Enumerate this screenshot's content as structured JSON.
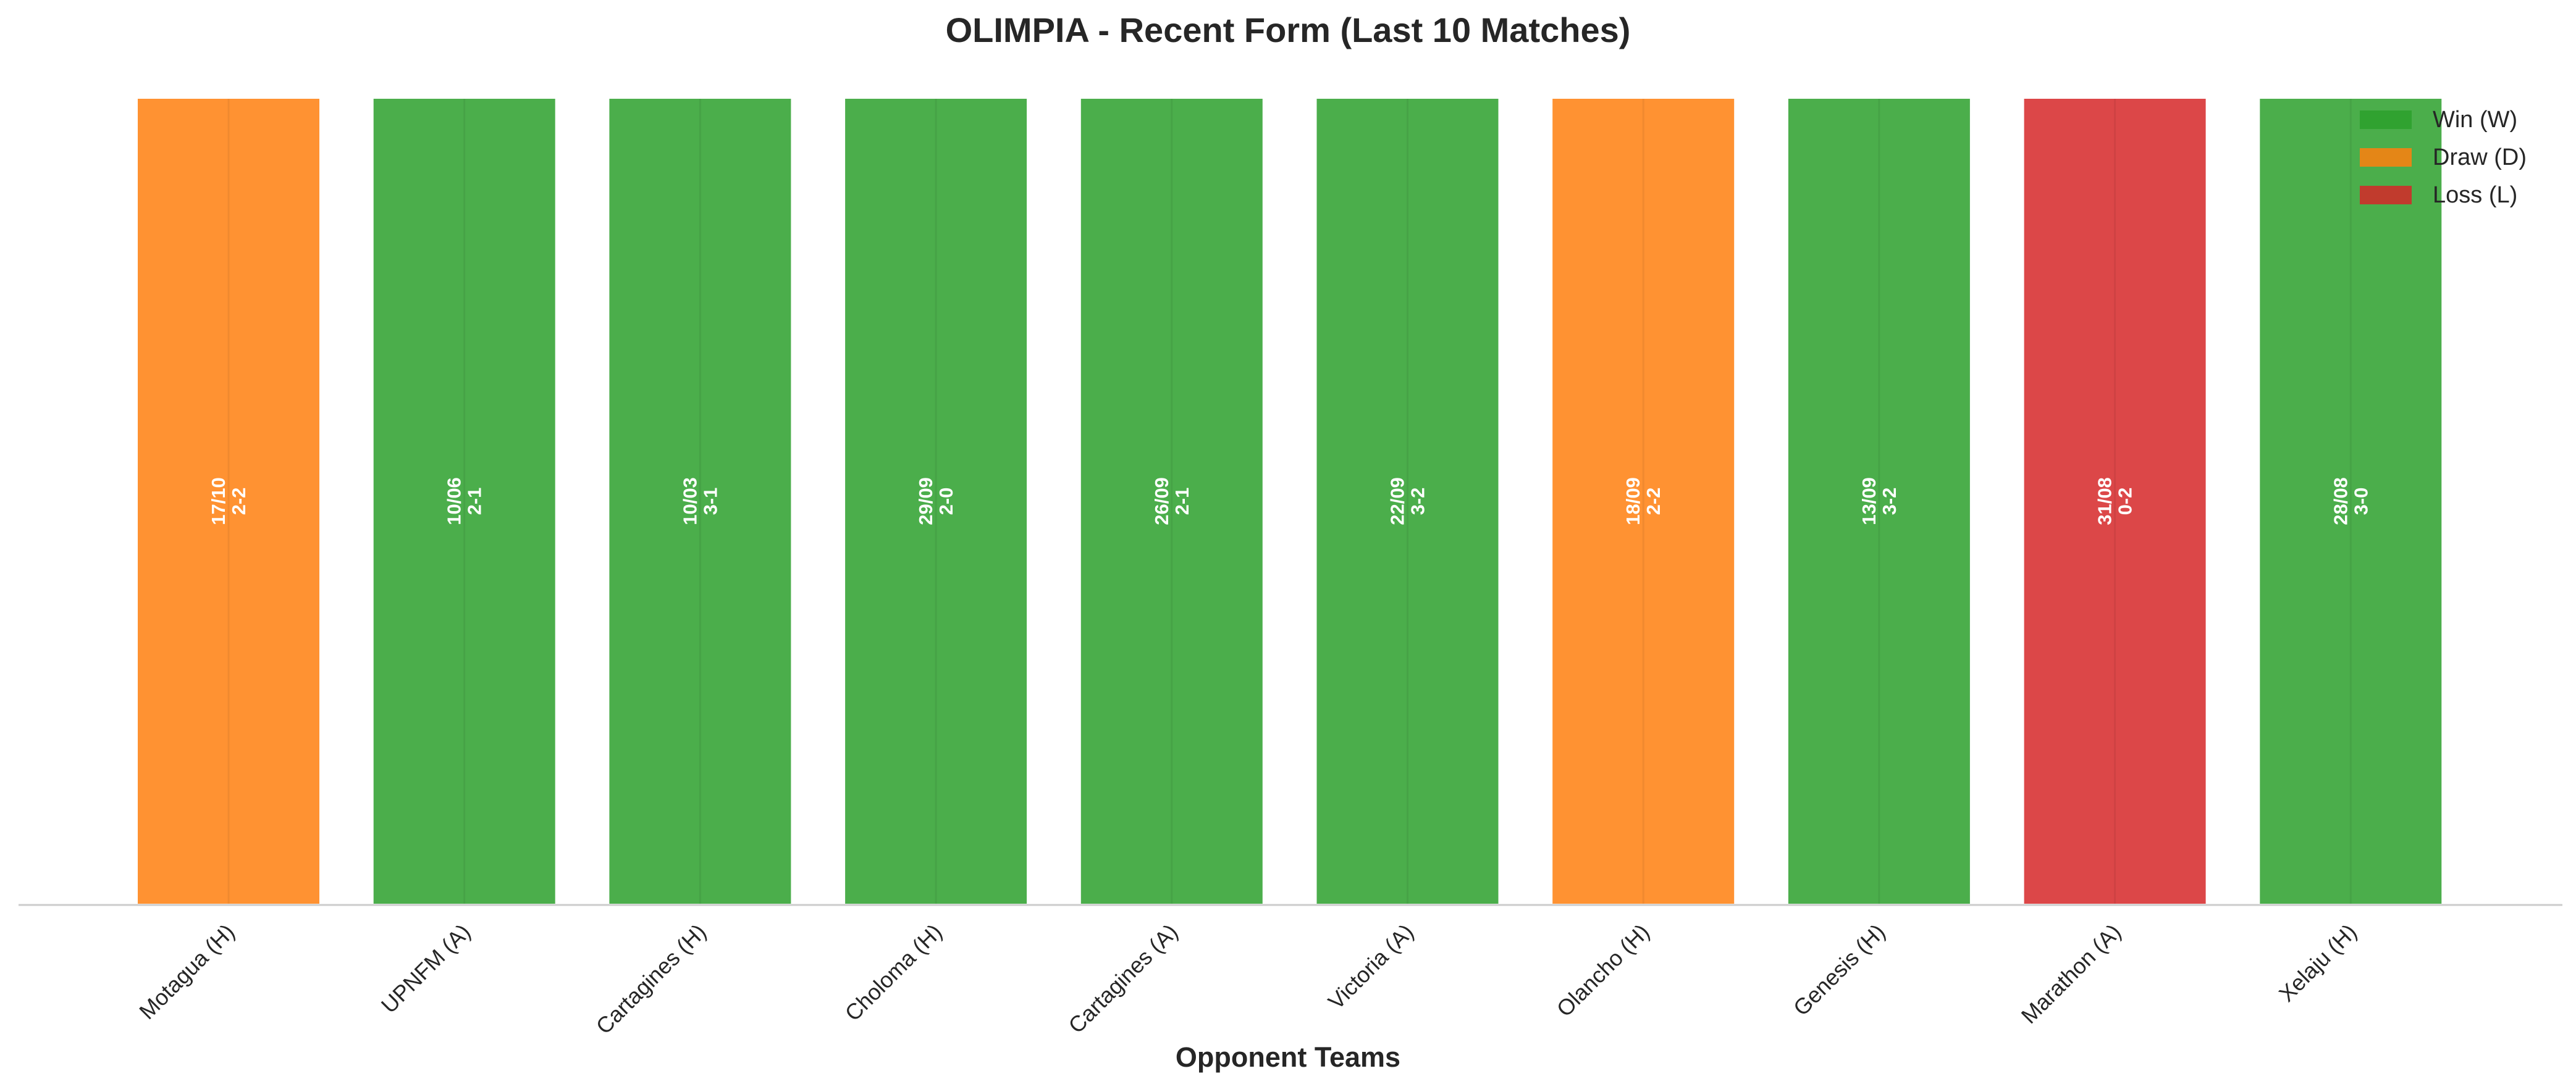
{
  "chart_data": {
    "type": "bar",
    "title": "OLIMPIA - Recent Form (Last 10 Matches)",
    "xlabel": "Opponent Teams",
    "ylabel": "",
    "categories": [
      "Motagua (H)",
      "UPNFM (A)",
      "Cartagines (H)",
      "Choloma (H)",
      "Cartagines (A)",
      "Victoria (A)",
      "Olancho (H)",
      "Genesis (H)",
      "Marathon (A)",
      "Xelaju (H)"
    ],
    "values": [
      1,
      1,
      1,
      1,
      1,
      1,
      1,
      1,
      1,
      1
    ],
    "ylim": [
      0,
      1
    ],
    "results": [
      "D",
      "W",
      "W",
      "W",
      "W",
      "W",
      "D",
      "W",
      "L",
      "W"
    ],
    "dates": [
      "17/10",
      "10/06",
      "10/03",
      "29/09",
      "26/09",
      "22/09",
      "18/09",
      "13/09",
      "31/08",
      "28/08"
    ],
    "scores": [
      "2-2",
      "2-1",
      "3-1",
      "2-0",
      "2-1",
      "3-2",
      "2-2",
      "3-2",
      "0-2",
      "3-0"
    ],
    "colors": {
      "W": "#2ca02c",
      "D": "#ff7f0e",
      "L": "#d62728"
    },
    "legend": {
      "placement": "top-right",
      "entries": [
        {
          "key": "W",
          "label": "Win (W)"
        },
        {
          "key": "D",
          "label": "Draw (D)"
        },
        {
          "key": "L",
          "label": "Loss (L)"
        }
      ]
    },
    "grid": false
  }
}
